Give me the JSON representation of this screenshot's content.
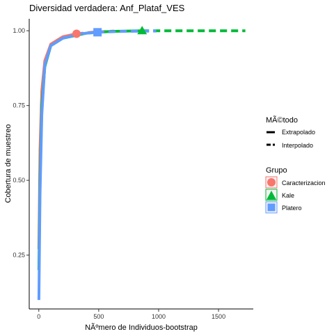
{
  "chart_data": {
    "type": "line",
    "title": "Diversidad verdadera: Anf_Plataf_VES",
    "xlabel": "NÃºmero de Individuos-bootstrap",
    "ylabel": "Cobertura de muestreo",
    "xlim": [
      -80,
      1790
    ],
    "ylim": [
      0.07,
      1.04
    ],
    "x_ticks": [
      0,
      500,
      1000,
      1500
    ],
    "x_tick_labels": [
      "0",
      "500",
      "1000",
      "1500"
    ],
    "y_ticks": [
      0.25,
      0.5,
      0.75,
      1.0
    ],
    "y_tick_labels": [
      "0.25",
      "0.50",
      "0.75",
      "1.00"
    ],
    "grid": false,
    "legend_position": "right",
    "legend_method": {
      "title": "MÃ©todo",
      "items": [
        {
          "label": "Extrapolado",
          "style": "solid"
        },
        {
          "label": "Interpolado",
          "style": "dashed"
        }
      ]
    },
    "legend_group": {
      "title": "Grupo",
      "items": [
        {
          "label": "Caracterizacion",
          "color": "#F8766D",
          "shape": "circle"
        },
        {
          "label": "Kale",
          "color": "#00BA38",
          "shape": "triangle"
        },
        {
          "label": "Platero",
          "color": "#619CFF",
          "shape": "square"
        }
      ]
    },
    "series": [
      {
        "name": "Caracterizacion",
        "color": "#F8766D",
        "observed": [
          315,
          0.99
        ],
        "interpolated": [
          [
            1,
            0.27
          ],
          [
            10,
            0.6
          ],
          [
            25,
            0.8
          ],
          [
            50,
            0.9
          ],
          [
            100,
            0.955
          ],
          [
            200,
            0.98
          ],
          [
            315,
            0.99
          ]
        ],
        "extrapolated": [
          [
            315,
            0.99
          ],
          [
            450,
            0.995
          ],
          [
            630,
            0.999
          ]
        ]
      },
      {
        "name": "Kale",
        "color": "#00BA38",
        "observed": [
          862,
          1.0
        ],
        "interpolated": [
          [
            1,
            0.2
          ],
          [
            10,
            0.5
          ],
          [
            25,
            0.75
          ],
          [
            50,
            0.88
          ],
          [
            100,
            0.95
          ],
          [
            200,
            0.975
          ],
          [
            400,
            0.992
          ],
          [
            600,
            0.998
          ],
          [
            862,
            1.0
          ]
        ],
        "extrapolated": [
          [
            862,
            1.0
          ],
          [
            1200,
            1.0
          ],
          [
            1724,
            1.0
          ]
        ]
      },
      {
        "name": "Platero",
        "color": "#619CFF",
        "observed": [
          490,
          0.995
        ],
        "interpolated": [
          [
            1,
            0.1
          ],
          [
            10,
            0.45
          ],
          [
            25,
            0.72
          ],
          [
            50,
            0.885
          ],
          [
            100,
            0.95
          ],
          [
            200,
            0.975
          ],
          [
            350,
            0.99
          ],
          [
            490,
            0.995
          ]
        ],
        "extrapolated": [
          [
            490,
            0.995
          ],
          [
            700,
            0.998
          ],
          [
            980,
            0.999
          ]
        ]
      }
    ]
  }
}
